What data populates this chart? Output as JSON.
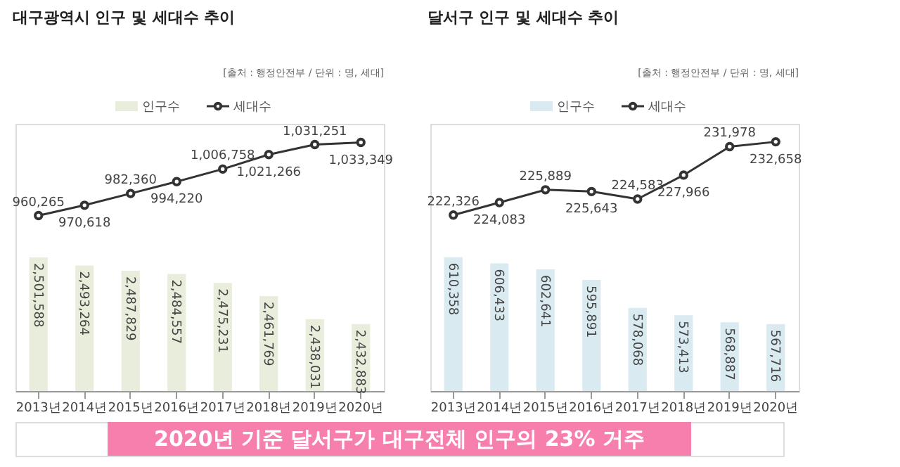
{
  "chart_data": [
    {
      "type": "bar",
      "title": "대구광역시 인구 및 세대수 추이",
      "categories": [
        "2013년",
        "2014년",
        "2015년",
        "2016년",
        "2017년",
        "2018년",
        "2019년",
        "2020년"
      ],
      "series": [
        {
          "name": "인구수",
          "color": "#e8eddc",
          "values": [
            2501588,
            2493264,
            2487829,
            2484557,
            2475231,
            2461769,
            2438031,
            2432883
          ],
          "value_labels": [
            "2,501,588",
            "2,493,264",
            "2,487,829",
            "2,484,557",
            "2,475,231",
            "2,461,769",
            "2,438,031",
            "2,432,883"
          ]
        },
        {
          "name": "세대수",
          "type": "line",
          "axis": "y2",
          "color": "#333333",
          "values": [
            960265,
            970618,
            982360,
            994220,
            1006758,
            1021266,
            1031251,
            1033349
          ],
          "value_labels": [
            "960,265",
            "970,618",
            "982,360",
            "994,220",
            "1,006,758",
            "1,021,266",
            "1,031,251",
            "1,033,349"
          ]
        }
      ],
      "ylim": [
        2364000,
        2639000
      ],
      "y2lim": [
        785000,
        1052000
      ],
      "tick_labels": "x",
      "legend": "top",
      "marker": "circle",
      "annotations": [
        "[출처 : 행정안전부 / 단위 : 명, 세대]",
        "2020년 기준 달서구가 대구전체 인구의 23% 거주"
      ]
    },
    {
      "type": "bar",
      "title": "달서구 인구 및 세대수 추이",
      "categories": [
        "2013년",
        "2014년",
        "2015년",
        "2016년",
        "2017년",
        "2018년",
        "2019년",
        "2020년"
      ],
      "series": [
        {
          "name": "인구수",
          "color": "#d9ebf1",
          "values": [
            610358,
            606433,
            602641,
            595891,
            578068,
            573413,
            568887,
            567716
          ],
          "value_labels": [
            "610,358",
            "606,433",
            "602,641",
            "595,891",
            "578,068",
            "573,413",
            "568,887",
            "567,716"
          ]
        },
        {
          "name": "세대수",
          "type": "line",
          "axis": "y2",
          "color": "#333333",
          "values": [
            222326,
            224083,
            225889,
            225643,
            224583,
            227966,
            231978,
            232658
          ],
          "value_labels": [
            "222,326",
            "224,083",
            "225,889",
            "225,643",
            "224,583",
            "227,966",
            "231,978",
            "232,658"
          ]
        }
      ],
      "ylim": [
        525000,
        695600
      ],
      "y2lim": [
        197500,
        235200
      ],
      "tick_labels": "x",
      "legend": "top",
      "marker": "circle",
      "annotations": [
        "[출처 : 행정안전부 / 단위 : 명, 세대]"
      ]
    }
  ]
}
